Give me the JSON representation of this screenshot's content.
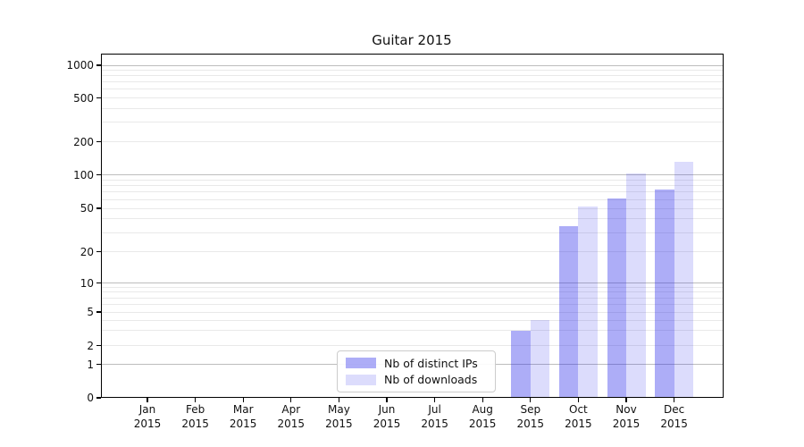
{
  "chart_data": {
    "type": "bar",
    "title": "Guitar 2015",
    "categories": [
      "Jan 2015",
      "Feb 2015",
      "Mar 2015",
      "Apr 2015",
      "May 2015",
      "Jun 2015",
      "Jul 2015",
      "Aug 2015",
      "Sep 2015",
      "Oct 2015",
      "Nov 2015",
      "Dec 2015"
    ],
    "series": [
      {
        "name": "Nb of distinct IPs",
        "color": "rgba(40,40,235,0.38)",
        "values": [
          0,
          0,
          0,
          0,
          0,
          0,
          0,
          0,
          3,
          34,
          61,
          74
        ]
      },
      {
        "name": "Nb of downloads",
        "color": "rgba(40,40,235,0.16)",
        "values": [
          0,
          0,
          0,
          0,
          0,
          0,
          0,
          0,
          4,
          52,
          102,
          130
        ]
      }
    ],
    "xlabel": "",
    "ylabel": "",
    "yscale": "symlog",
    "yticks": [
      0,
      1,
      2,
      5,
      10,
      20,
      50,
      100,
      200,
      500,
      1000
    ],
    "ylim": [
      0,
      1280
    ],
    "grid": "both",
    "legend_position": "lower center",
    "colors": {
      "major_grid": "#bdbdbd",
      "minor_grid": "#e9e9e9",
      "spine": "#000000",
      "text": "#111111"
    }
  }
}
